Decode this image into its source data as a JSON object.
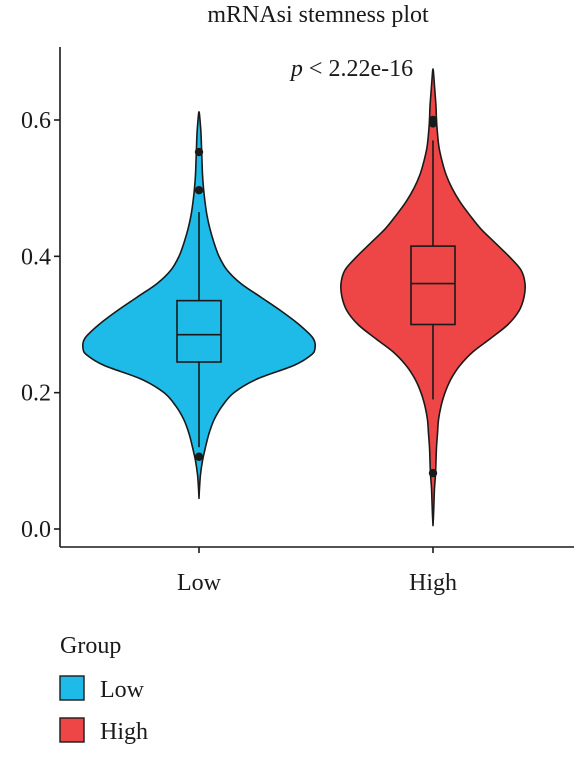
{
  "chart_data": {
    "type": "violin",
    "title": "mRNAsi stemness plot",
    "xlabel": "",
    "ylabel": "",
    "ylim": [
      0.0,
      0.7
    ],
    "yticks": [
      0.0,
      0.2,
      0.4,
      0.6
    ],
    "ytick_labels": [
      "0.0",
      "0.2",
      "0.4",
      "0.6"
    ],
    "categories": [
      "Low",
      "High"
    ],
    "annotation": {
      "prefix": "p",
      "text": " < 2.22e-16"
    },
    "legend": {
      "title": "Group",
      "position": "bottom-left",
      "entries": [
        {
          "label": "Low",
          "color": "#1EBAE8"
        },
        {
          "label": "High",
          "color": "#EE4646"
        }
      ]
    },
    "series": [
      {
        "name": "Low",
        "color": "#1EBAE8",
        "whisker_low": 0.12,
        "q1": 0.245,
        "median": 0.285,
        "q3": 0.335,
        "whisker_high": 0.465,
        "outliers": [
          0.553,
          0.497,
          0.106
        ],
        "density_profile": [
          [
            0.045,
            0.0
          ],
          [
            0.06,
            0.5
          ],
          [
            0.08,
            1.5
          ],
          [
            0.1,
            3.5
          ],
          [
            0.12,
            6.5
          ],
          [
            0.14,
            10.0
          ],
          [
            0.16,
            15.0
          ],
          [
            0.18,
            23.0
          ],
          [
            0.2,
            35.0
          ],
          [
            0.22,
            58.0
          ],
          [
            0.24,
            95.0
          ],
          [
            0.255,
            112.0
          ],
          [
            0.265,
            116.0
          ],
          [
            0.28,
            114.0
          ],
          [
            0.3,
            100.0
          ],
          [
            0.32,
            82.0
          ],
          [
            0.34,
            62.0
          ],
          [
            0.36,
            42.0
          ],
          [
            0.38,
            28.0
          ],
          [
            0.4,
            20.0
          ],
          [
            0.42,
            15.0
          ],
          [
            0.44,
            11.0
          ],
          [
            0.46,
            8.0
          ],
          [
            0.48,
            6.0
          ],
          [
            0.5,
            4.5
          ],
          [
            0.52,
            3.5
          ],
          [
            0.54,
            3.0
          ],
          [
            0.56,
            2.5
          ],
          [
            0.58,
            2.0
          ],
          [
            0.6,
            1.0
          ],
          [
            0.612,
            0.0
          ]
        ]
      },
      {
        "name": "High",
        "color": "#EE4646",
        "whisker_low": 0.19,
        "q1": 0.3,
        "median": 0.36,
        "q3": 0.415,
        "whisker_high": 0.57,
        "outliers": [
          0.6,
          0.595,
          0.082
        ],
        "density_profile": [
          [
            0.005,
            0.0
          ],
          [
            0.02,
            0.5
          ],
          [
            0.04,
            1.0
          ],
          [
            0.06,
            1.5
          ],
          [
            0.08,
            2.5
          ],
          [
            0.1,
            3.0
          ],
          [
            0.12,
            3.5
          ],
          [
            0.14,
            4.5
          ],
          [
            0.16,
            5.5
          ],
          [
            0.18,
            8.0
          ],
          [
            0.2,
            12.0
          ],
          [
            0.22,
            18.0
          ],
          [
            0.24,
            27.0
          ],
          [
            0.26,
            40.0
          ],
          [
            0.28,
            58.0
          ],
          [
            0.3,
            75.0
          ],
          [
            0.32,
            86.0
          ],
          [
            0.34,
            91.0
          ],
          [
            0.36,
            92.0
          ],
          [
            0.38,
            88.0
          ],
          [
            0.4,
            76.0
          ],
          [
            0.42,
            62.0
          ],
          [
            0.44,
            48.0
          ],
          [
            0.46,
            37.0
          ],
          [
            0.48,
            27.0
          ],
          [
            0.5,
            19.0
          ],
          [
            0.52,
            13.0
          ],
          [
            0.54,
            9.0
          ],
          [
            0.56,
            6.0
          ],
          [
            0.58,
            4.5
          ],
          [
            0.6,
            3.5
          ],
          [
            0.62,
            3.0
          ],
          [
            0.64,
            2.0
          ],
          [
            0.66,
            1.0
          ],
          [
            0.675,
            0.0
          ]
        ]
      }
    ]
  }
}
